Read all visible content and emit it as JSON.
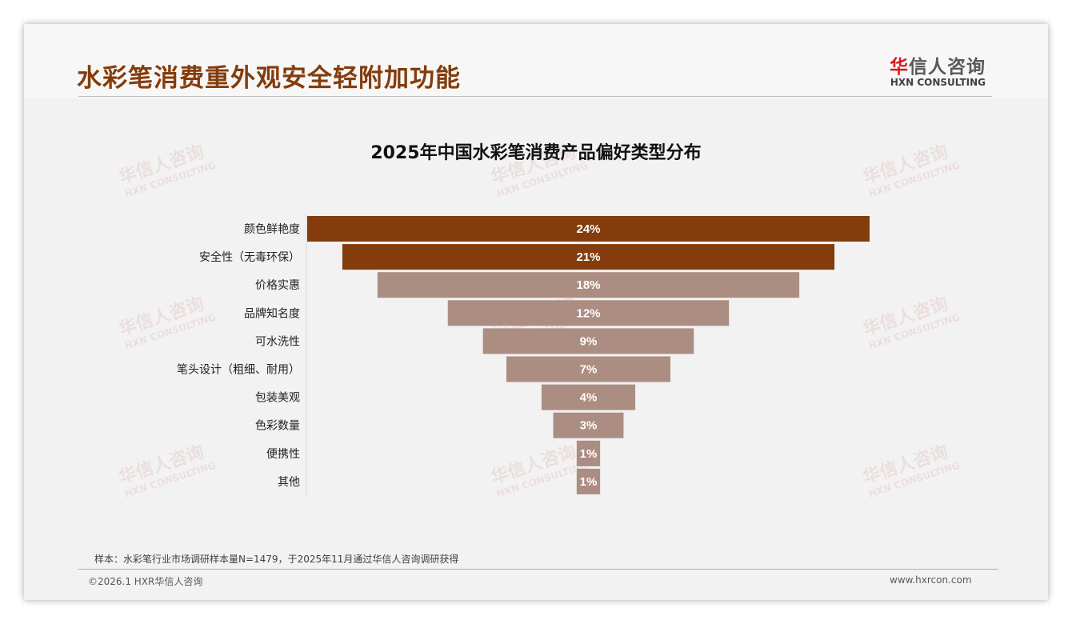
{
  "header": {
    "title": "水彩笔消费重外观安全轻附加功能",
    "logo_cn_accent": "华",
    "logo_cn": "信人咨询",
    "logo_en": "HXN CONSULTING"
  },
  "watermark": {
    "cn": "华信人咨询",
    "en": "HXN CONSULTING"
  },
  "chart_data": {
    "type": "bar",
    "orientation": "horizontal-centered-funnel",
    "title": "2025年中国水彩笔消费产品偏好类型分布",
    "categories": [
      "颜色鲜艳度",
      "安全性（无毒环保）",
      "价格实惠",
      "品牌知名度",
      "可水洗性",
      "笔头设计（粗细、耐用）",
      "包装美观",
      "色彩数量",
      "便携性",
      "其他"
    ],
    "values": [
      24,
      21,
      18,
      12,
      9,
      7,
      4,
      3,
      1,
      1
    ],
    "labels": [
      "24%",
      "21%",
      "18%",
      "12%",
      "9%",
      "7%",
      "4%",
      "3%",
      "1%",
      "1%"
    ],
    "unit": "%",
    "colors": [
      "#843c0c",
      "#843c0c",
      "#ac8d82",
      "#ac8d82",
      "#ac8d82",
      "#ac8d82",
      "#ac8d82",
      "#ac8d82",
      "#ac8d82",
      "#ac8d82"
    ]
  },
  "footer": {
    "note": "样本：水彩笔行业市场调研样本量N=1479，于2025年11月通过华信人咨询调研获得",
    "copyright": "©2026.1 HXR华信人咨询",
    "url": "www.hxrcon.com"
  }
}
